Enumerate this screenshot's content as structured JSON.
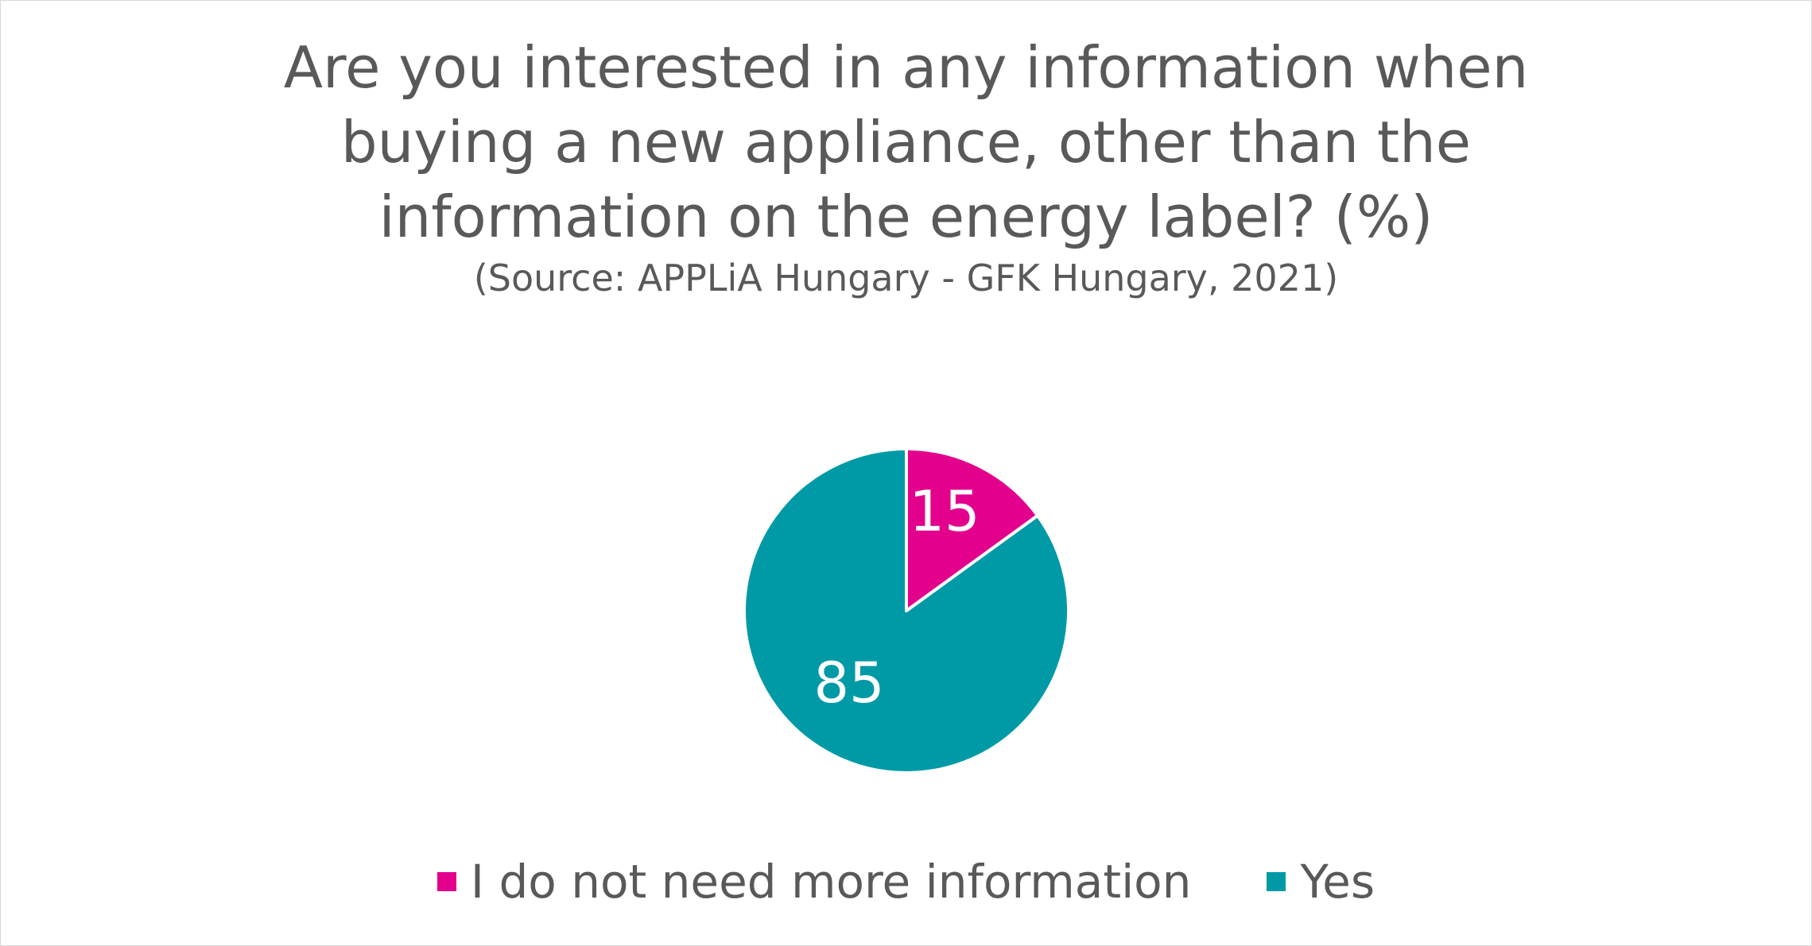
{
  "chart_data": {
    "type": "pie",
    "title_lines": [
      "Are you interested in any information when",
      "buying a new appliance, other than the",
      "information on the energy label? (%)"
    ],
    "subtitle": "(Source: APPLiA Hungary - GFK Hungary, 2021)",
    "categories": [
      "I do not need more information",
      "Yes"
    ],
    "values": [
      15,
      85
    ],
    "data_labels": [
      "15",
      "85"
    ],
    "colors": [
      "#e3008c",
      "#009aa6"
    ],
    "legend_position": "bottom",
    "start_angle_deg": 0,
    "direction": "clockwise"
  }
}
